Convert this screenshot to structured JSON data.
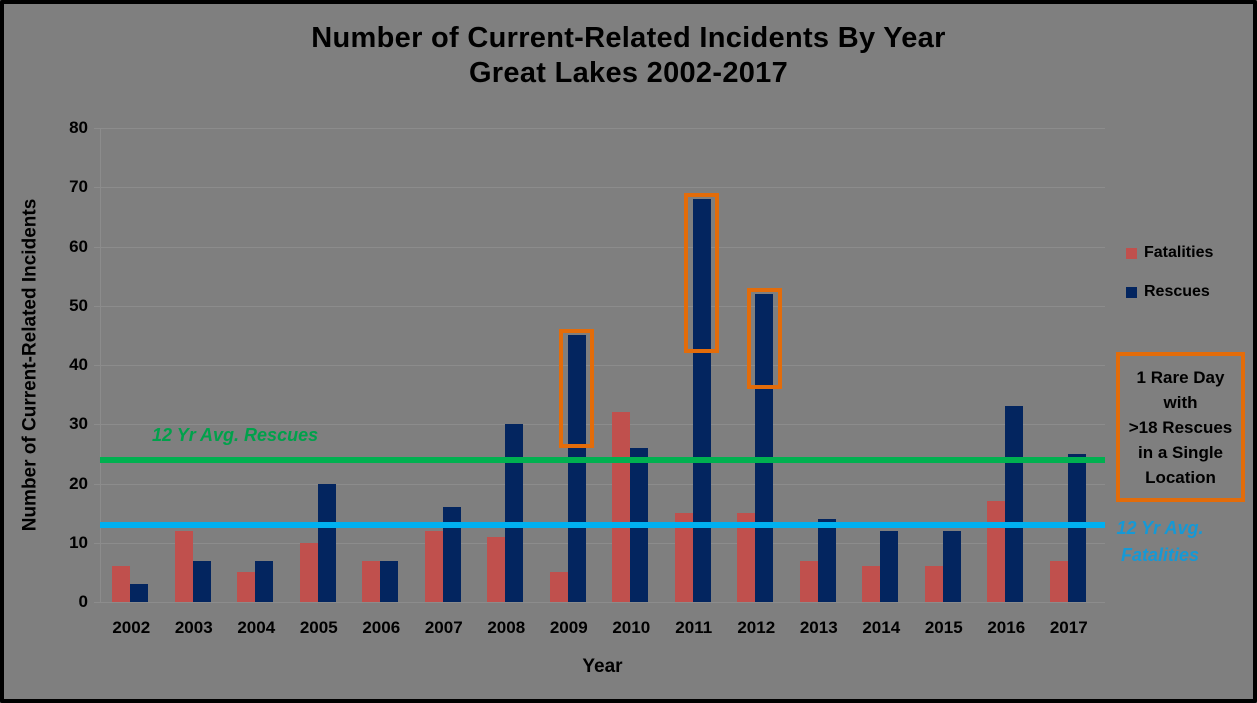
{
  "title": {
    "line1": "Number of Current-Related Incidents By Year",
    "line2": "Great Lakes 2002-2017"
  },
  "axes": {
    "y_title": "Number of Current-Related Incidents",
    "x_title": "Year"
  },
  "legend": {
    "items": [
      {
        "label": "Fatalities",
        "color": "#C0504D"
      },
      {
        "label": "Rescues",
        "color": "#03255F"
      }
    ]
  },
  "annotation_box": {
    "text": "1 Rare Day\nwith\n>18 Rescues\nin a Single\nLocation",
    "border_color": "#E36C0A"
  },
  "colors": {
    "background": "#7F7F7F",
    "gridline": "#8C8C8C",
    "text": "#000000",
    "frame_border": "#000000"
  },
  "chart_data": {
    "type": "bar",
    "title": "Number of Current-Related Incidents By Year — Great Lakes 2002-2017",
    "xlabel": "Year",
    "ylabel": "Number of Current-Related Incidents",
    "ylim": [
      0,
      80
    ],
    "ytick_step": 10,
    "grid": true,
    "legend_position": "right",
    "categories": [
      "2002",
      "2003",
      "2004",
      "2005",
      "2006",
      "2007",
      "2008",
      "2009",
      "2010",
      "2011",
      "2012",
      "2013",
      "2014",
      "2015",
      "2016",
      "2017"
    ],
    "series": [
      {
        "name": "Fatalities",
        "color": "#C0504D",
        "values": [
          6,
          12,
          5,
          10,
          7,
          12,
          11,
          5,
          32,
          15,
          15,
          7,
          6,
          6,
          17,
          7
        ]
      },
      {
        "name": "Rescues",
        "color": "#03255F",
        "values": [
          3,
          7,
          7,
          20,
          7,
          16,
          30,
          45,
          26,
          68,
          52,
          14,
          12,
          12,
          33,
          25
        ]
      }
    ],
    "reference_lines": [
      {
        "label": "12 Yr Avg. Rescues",
        "value": 24,
        "color": "#00B050",
        "label_color": "#00A14B"
      },
      {
        "label": "12 Yr Avg.\nFatalities",
        "value": 13,
        "color": "#00B0F0",
        "label_color": "#1599D6"
      }
    ],
    "highlight_boxes": [
      {
        "category": "2009",
        "series": "Rescues",
        "value_range": [
          26,
          46
        ],
        "color": "#E36C0A"
      },
      {
        "category": "2011",
        "series": "Rescues",
        "value_range": [
          42,
          69
        ],
        "color": "#E36C0A"
      },
      {
        "category": "2012",
        "series": "Rescues",
        "value_range": [
          36,
          53
        ],
        "color": "#E36C0A"
      }
    ]
  }
}
